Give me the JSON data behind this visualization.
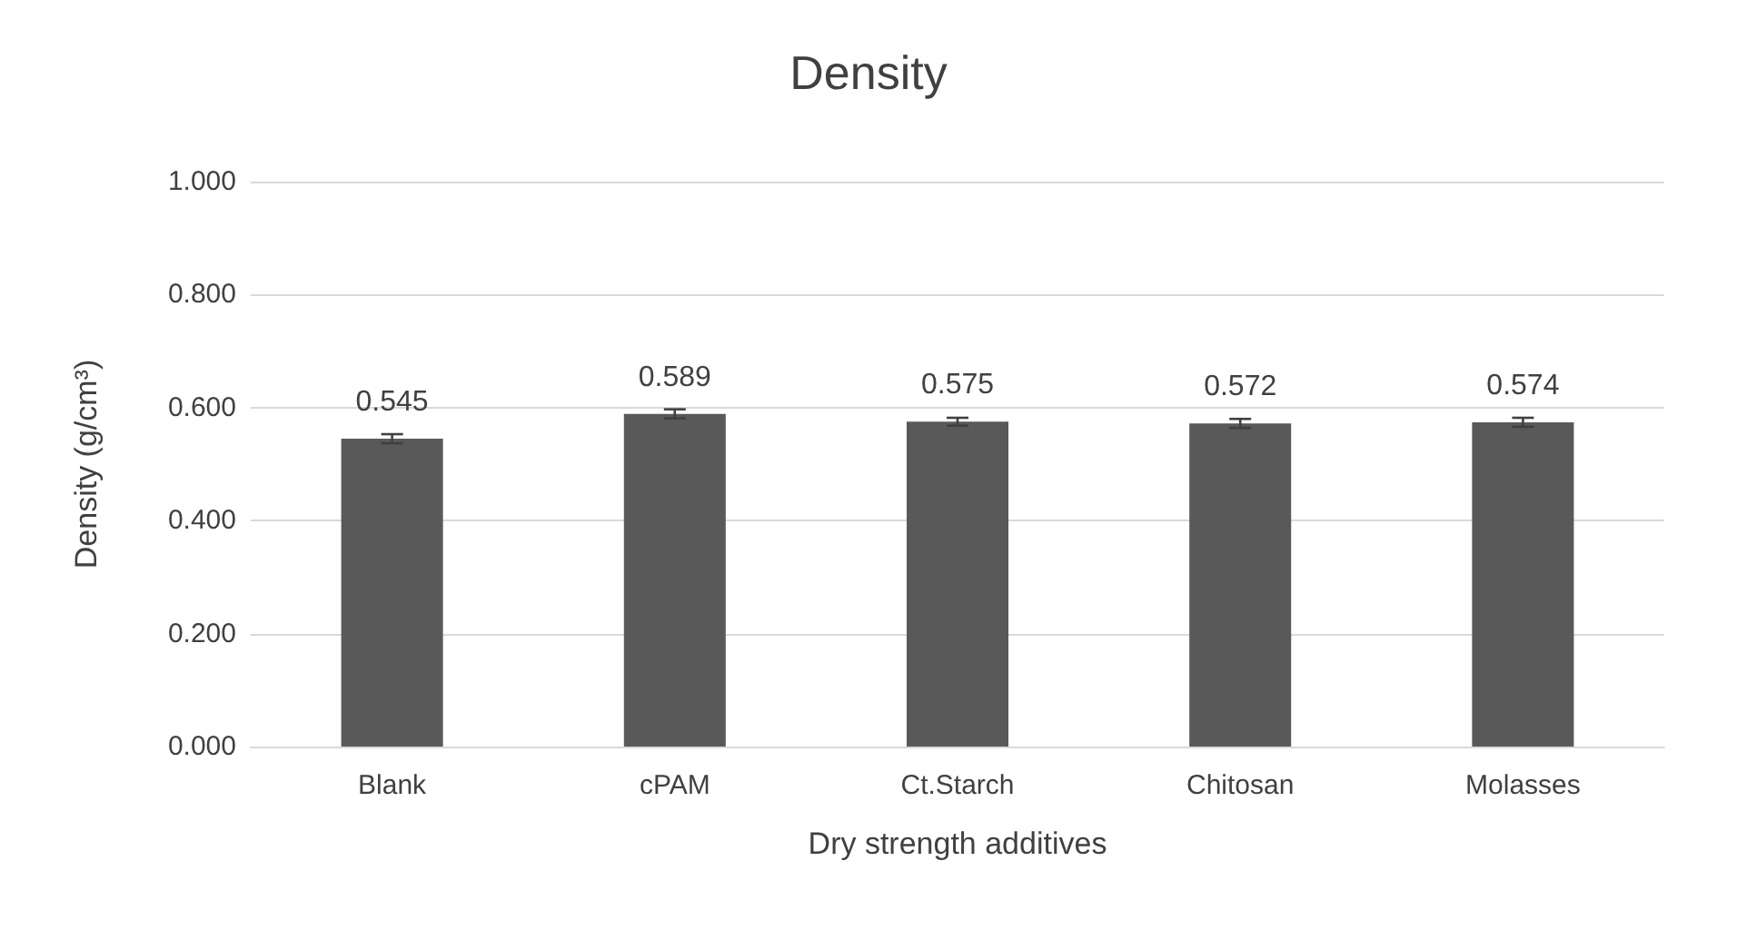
{
  "chart_data": {
    "type": "bar",
    "title": "Density",
    "xlabel": "Dry strength additives",
    "ylabel": "Density (g/cm³)",
    "categories": [
      "Blank",
      "cPAM",
      "Ct.Starch",
      "Chitosan",
      "Molasses"
    ],
    "series": [
      {
        "color": "#595959",
        "values": [
          0.545,
          0.589,
          0.575,
          0.572,
          0.574
        ],
        "errors": [
          0.008,
          0.008,
          0.007,
          0.008,
          0.008
        ]
      }
    ],
    "data_labels": true,
    "ylim": [
      0,
      1
    ],
    "yticks": [
      {
        "value": 0,
        "label": "0.000"
      },
      {
        "value": 0.2,
        "label": "0.200"
      },
      {
        "value": 0.4,
        "label": "0.400"
      },
      {
        "value": 0.6,
        "label": "0.600"
      },
      {
        "value": 0.8,
        "label": "0.800"
      },
      {
        "value": 1,
        "label": "1.000"
      }
    ],
    "grid": "y"
  }
}
